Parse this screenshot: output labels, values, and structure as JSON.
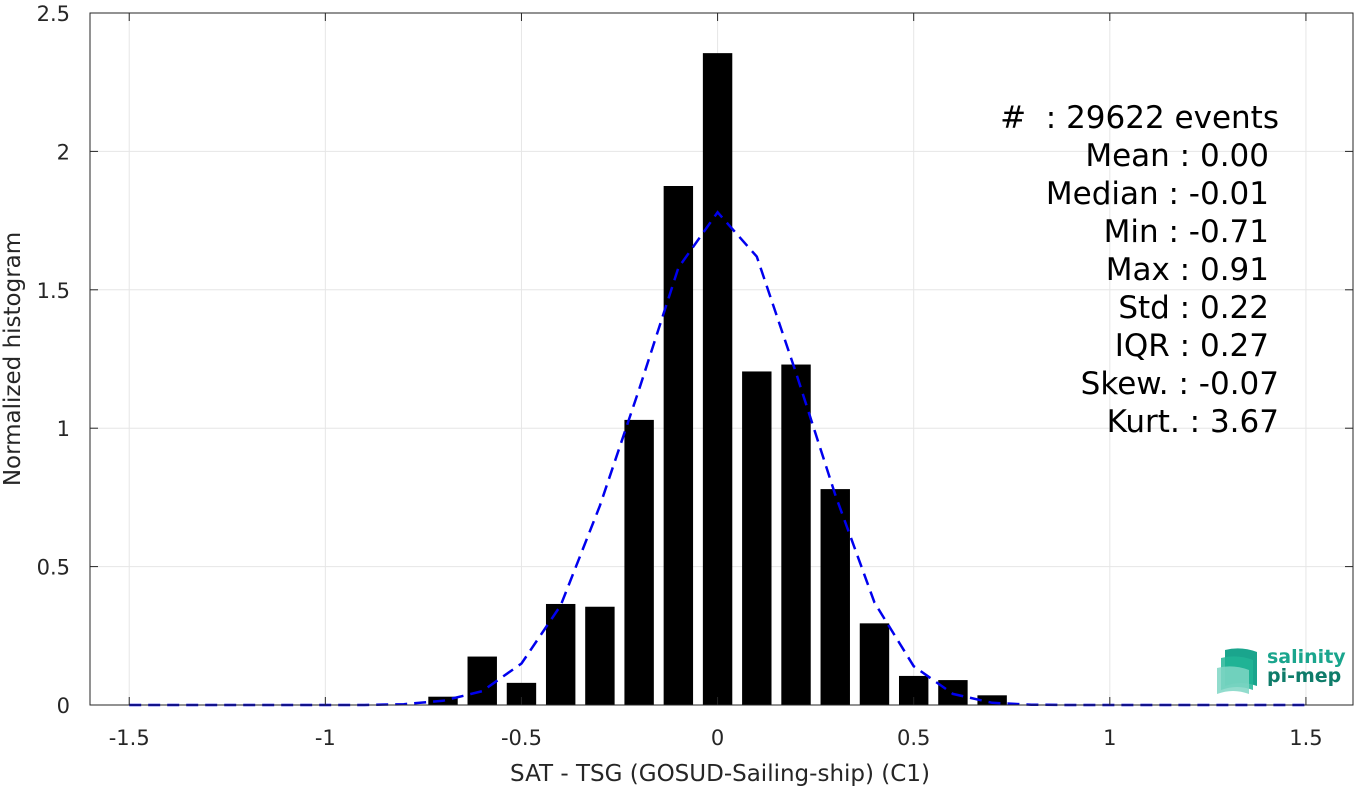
{
  "chart_data": {
    "type": "bar",
    "xlabel": "SAT - TSG (GOSUD-Sailing-ship) (C1)",
    "ylabel": "Normalized histogram",
    "xlim": [
      -1.6,
      1.62
    ],
    "ylim": [
      0,
      2.5
    ],
    "xticks": [
      -1.5,
      -1,
      -0.5,
      0,
      0.5,
      1,
      1.5
    ],
    "yticks": [
      0,
      0.5,
      1,
      1.5,
      2,
      2.5
    ],
    "xtick_labels": [
      "-1.5",
      "-1",
      "-0.5",
      "0",
      "0.5",
      "1",
      "1.5"
    ],
    "ytick_labels": [
      "0",
      "0.5",
      "1",
      "1.5",
      "2",
      "2.5"
    ],
    "grid": true,
    "bin_width": 0.1,
    "bar_width": 0.075,
    "bars": {
      "x": [
        -0.7,
        -0.6,
        -0.5,
        -0.4,
        -0.3,
        -0.2,
        -0.1,
        0.0,
        0.1,
        0.2,
        0.3,
        0.4,
        0.5,
        0.6,
        0.7
      ],
      "values": [
        0.03,
        0.175,
        0.08,
        0.365,
        0.355,
        1.03,
        1.875,
        2.355,
        1.205,
        1.23,
        0.78,
        0.295,
        0.105,
        0.09,
        0.035
      ]
    },
    "fit_curve": {
      "style": "dashed",
      "color": "#0000ee",
      "x": [
        -1.5,
        -1.4,
        -1.3,
        -1.2,
        -1.1,
        -1.0,
        -0.9,
        -0.8,
        -0.7,
        -0.6,
        -0.5,
        -0.4,
        -0.3,
        -0.2,
        -0.1,
        0.0,
        0.1,
        0.2,
        0.3,
        0.4,
        0.5,
        0.6,
        0.7,
        0.8,
        0.9,
        1.0,
        1.1,
        1.2,
        1.3,
        1.4,
        1.5
      ],
      "y": [
        0,
        0,
        0,
        0,
        0,
        0,
        0,
        0.003,
        0.015,
        0.05,
        0.15,
        0.36,
        0.72,
        1.14,
        1.58,
        1.78,
        1.62,
        1.2,
        0.76,
        0.37,
        0.14,
        0.04,
        0.008,
        0.001,
        0,
        0,
        0,
        0,
        0,
        0,
        0
      ]
    }
  },
  "stats": {
    "events": "#  : 29622 events",
    "mean": "Mean : 0.00",
    "median": "Median : -0.01",
    "min": "Min : -0.71",
    "max": "Max : 0.91",
    "std": "Std : 0.22",
    "iqr": "IQR : 0.27",
    "skew": "Skew. : -0.07",
    "kurt": "Kurt. : 3.67"
  },
  "logo": {
    "line1": "salinity",
    "line2": "pi-mep",
    "colors": [
      "#1aa58d",
      "#0f7c6a"
    ]
  }
}
